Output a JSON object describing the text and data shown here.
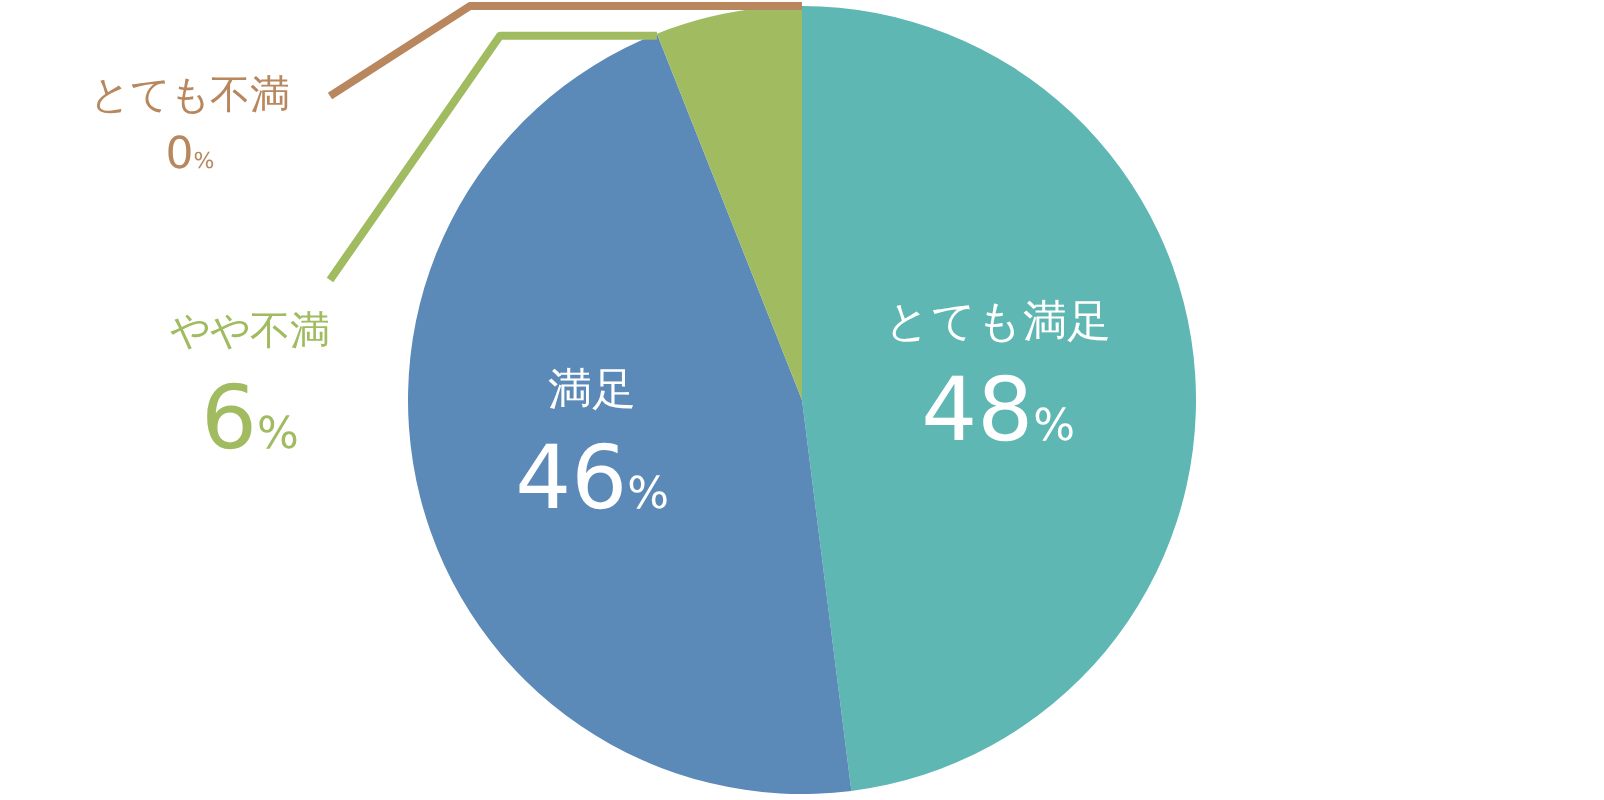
{
  "chart_data": {
    "type": "pie",
    "categories": [
      "とても満足",
      "満足",
      "やや不満",
      "とても不満"
    ],
    "values": [
      48,
      46,
      6,
      0
    ],
    "colors": [
      "#5eb7b3",
      "#5b89b8",
      "#a0bb60",
      "#b8875e"
    ],
    "value_labels": [
      "48%",
      "46%",
      "6%",
      "0%"
    ]
  }
}
